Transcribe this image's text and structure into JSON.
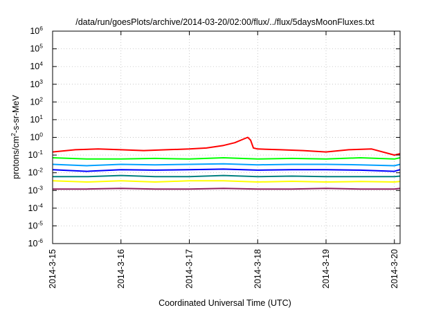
{
  "chart_data": {
    "type": "line",
    "title": "/data/run/goesPlots/archive/2014-03-20/02:00/flux/../flux/5daysMoonFluxes.txt",
    "xlabel": "Coordinated Universal Time (UTC)",
    "ylabel": {
      "prefix": "protons/cm",
      "sup": "2",
      "suffix": "-s-sr-MeV"
    },
    "y_scale": "log",
    "ylim": [
      1e-06,
      1000000.0
    ],
    "y_ticks": [
      {
        "value": 1e-06,
        "base": "10",
        "exp": "-6"
      },
      {
        "value": 1e-05,
        "base": "10",
        "exp": "-5"
      },
      {
        "value": 0.0001,
        "base": "10",
        "exp": "-4"
      },
      {
        "value": 0.001,
        "base": "10",
        "exp": "-3"
      },
      {
        "value": 0.01,
        "base": "10",
        "exp": "-2"
      },
      {
        "value": 0.1,
        "base": "10",
        "exp": "-1"
      },
      {
        "value": 1.0,
        "base": "10",
        "exp": "0"
      },
      {
        "value": 10.0,
        "base": "10",
        "exp": "1"
      },
      {
        "value": 100.0,
        "base": "10",
        "exp": "2"
      },
      {
        "value": 1000.0,
        "base": "10",
        "exp": "3"
      },
      {
        "value": 10000.0,
        "base": "10",
        "exp": "4"
      },
      {
        "value": 100000.0,
        "base": "10",
        "exp": "5"
      },
      {
        "value": 1000000.0,
        "base": "10",
        "exp": "6"
      }
    ],
    "xlim": [
      "2014-03-15T00:00",
      "2014-03-20T02:00"
    ],
    "x_ticks": [
      {
        "value": "2014-03-15T00:00",
        "label": "2014-3-15"
      },
      {
        "value": "2014-03-16T00:00",
        "label": "2014-3-16"
      },
      {
        "value": "2014-03-17T00:00",
        "label": "2014-3-17"
      },
      {
        "value": "2014-03-18T00:00",
        "label": "2014-3-18"
      },
      {
        "value": "2014-03-19T00:00",
        "label": "2014-3-19"
      },
      {
        "value": "2014-03-20T00:00",
        "label": "2014-3-20"
      }
    ],
    "grid": true,
    "legend": "none",
    "series": [
      {
        "color": "#ff0000",
        "x": [
          "2014-03-15T00:00",
          "2014-03-15T08:00",
          "2014-03-15T16:00",
          "2014-03-16T00:00",
          "2014-03-16T08:00",
          "2014-03-16T16:00",
          "2014-03-17T00:00",
          "2014-03-17T06:00",
          "2014-03-17T12:00",
          "2014-03-17T16:00",
          "2014-03-17T19:00",
          "2014-03-17T20:30",
          "2014-03-17T21:30",
          "2014-03-17T22:30",
          "2014-03-18T00:00",
          "2014-03-18T08:00",
          "2014-03-18T16:00",
          "2014-03-19T00:00",
          "2014-03-19T08:00",
          "2014-03-19T16:00",
          "2014-03-20T00:00",
          "2014-03-20T02:00"
        ],
        "values": [
          0.15,
          0.2,
          0.22,
          0.2,
          0.18,
          0.2,
          0.22,
          0.25,
          0.35,
          0.5,
          0.8,
          1.0,
          0.7,
          0.25,
          0.22,
          0.2,
          0.18,
          0.15,
          0.2,
          0.22,
          0.1,
          0.12
        ]
      },
      {
        "color": "#00ff00",
        "x": [
          "2014-03-15T00:00",
          "2014-03-15T12:00",
          "2014-03-16T00:00",
          "2014-03-16T12:00",
          "2014-03-17T00:00",
          "2014-03-17T12:00",
          "2014-03-18T00:00",
          "2014-03-18T12:00",
          "2014-03-19T00:00",
          "2014-03-19T12:00",
          "2014-03-20T00:00",
          "2014-03-20T02:00"
        ],
        "values": [
          0.07,
          0.06,
          0.06,
          0.065,
          0.06,
          0.07,
          0.06,
          0.065,
          0.06,
          0.07,
          0.06,
          0.07
        ]
      },
      {
        "color": "#00a0ff",
        "x": [
          "2014-03-15T00:00",
          "2014-03-15T12:00",
          "2014-03-16T00:00",
          "2014-03-16T12:00",
          "2014-03-17T00:00",
          "2014-03-17T12:00",
          "2014-03-18T00:00",
          "2014-03-18T12:00",
          "2014-03-19T00:00",
          "2014-03-19T12:00",
          "2014-03-20T00:00",
          "2014-03-20T02:00"
        ],
        "values": [
          0.03,
          0.025,
          0.03,
          0.028,
          0.03,
          0.032,
          0.028,
          0.03,
          0.03,
          0.028,
          0.025,
          0.03
        ]
      },
      {
        "color": "#0000ff",
        "x": [
          "2014-03-15T00:00",
          "2014-03-15T12:00",
          "2014-03-16T00:00",
          "2014-03-16T12:00",
          "2014-03-17T00:00",
          "2014-03-17T12:00",
          "2014-03-18T00:00",
          "2014-03-18T12:00",
          "2014-03-19T00:00",
          "2014-03-19T12:00",
          "2014-03-20T00:00",
          "2014-03-20T02:00"
        ],
        "values": [
          0.015,
          0.012,
          0.015,
          0.014,
          0.015,
          0.016,
          0.014,
          0.015,
          0.015,
          0.014,
          0.012,
          0.015
        ]
      },
      {
        "color": "#008080",
        "x": [
          "2014-03-15T00:00",
          "2014-03-15T12:00",
          "2014-03-16T00:00",
          "2014-03-16T12:00",
          "2014-03-17T00:00",
          "2014-03-17T12:00",
          "2014-03-18T00:00",
          "2014-03-18T12:00",
          "2014-03-19T00:00",
          "2014-03-19T12:00",
          "2014-03-20T00:00",
          "2014-03-20T02:00"
        ],
        "values": [
          0.006,
          0.006,
          0.007,
          0.006,
          0.006,
          0.007,
          0.006,
          0.0065,
          0.006,
          0.006,
          0.006,
          0.0065
        ]
      },
      {
        "color": "#ffff00",
        "x": [
          "2014-03-15T00:00",
          "2014-03-15T12:00",
          "2014-03-16T00:00",
          "2014-03-16T12:00",
          "2014-03-17T00:00",
          "2014-03-17T12:00",
          "2014-03-18T00:00",
          "2014-03-18T12:00",
          "2014-03-19T00:00",
          "2014-03-19T12:00",
          "2014-03-20T00:00",
          "2014-03-20T02:00"
        ],
        "values": [
          0.0035,
          0.003,
          0.0035,
          0.003,
          0.0035,
          0.0035,
          0.003,
          0.0033,
          0.003,
          0.0032,
          0.003,
          0.0032
        ]
      },
      {
        "color": "#902060",
        "x": [
          "2014-03-15T00:00",
          "2014-03-15T12:00",
          "2014-03-16T00:00",
          "2014-03-16T12:00",
          "2014-03-17T00:00",
          "2014-03-17T12:00",
          "2014-03-18T00:00",
          "2014-03-18T12:00",
          "2014-03-19T00:00",
          "2014-03-19T12:00",
          "2014-03-20T00:00",
          "2014-03-20T02:00"
        ],
        "values": [
          0.0012,
          0.0012,
          0.0013,
          0.0012,
          0.0012,
          0.0013,
          0.0012,
          0.0012,
          0.0013,
          0.0012,
          0.0012,
          0.0013
        ]
      }
    ]
  }
}
